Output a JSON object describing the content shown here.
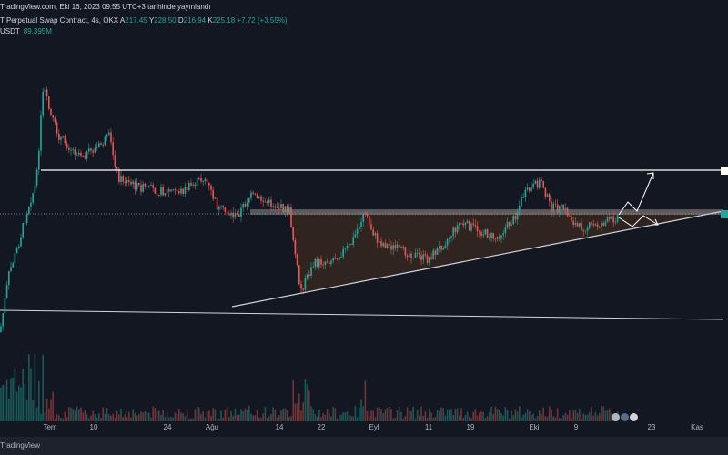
{
  "header": {
    "published": "TradingView.com, Eki 16, 2023 09:55 UTC+3 tarihinde yayınlandı",
    "symbol": "T Perpetual Swap Contract, 4s, OKX",
    "ohlc": [
      {
        "label": "A",
        "value": "217.45"
      },
      {
        "label": "Y",
        "value": "228.50"
      },
      {
        "label": "D",
        "value": "216.94"
      },
      {
        "label": "K",
        "value": "225.18"
      }
    ],
    "change": "+7.72 (+3.55%)",
    "volume_label": "USDT",
    "volume_value": "89.395M"
  },
  "x_axis": {
    "ticks": [
      "Tem",
      "10",
      "24",
      "Ağu",
      "14",
      "22",
      "Eyl",
      "11",
      "19",
      "Eki",
      "9",
      "23",
      "Kas"
    ]
  },
  "footer": {
    "brand": "TradingView"
  },
  "colors": {
    "background": "#131722",
    "up": "#26a69a",
    "down": "#ef5350",
    "resistance_line": "#ffffff",
    "triangle_fill": "#3b2a22"
  },
  "icons": [
    "volume-bars",
    "flag-icons"
  ]
}
